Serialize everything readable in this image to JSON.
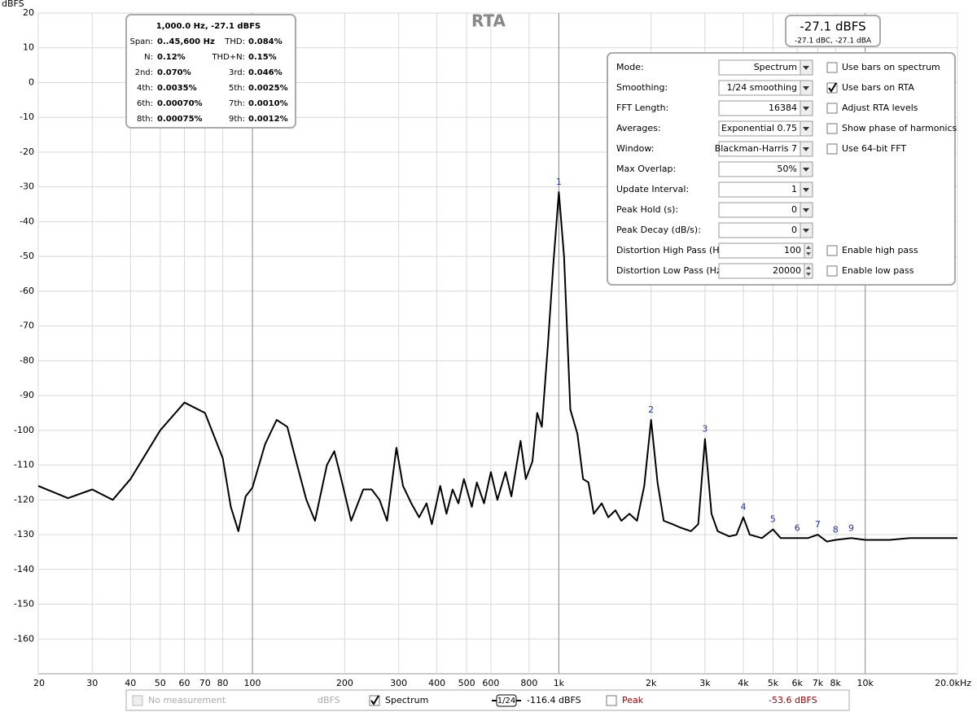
{
  "chart_data": {
    "type": "line",
    "title": "RTA",
    "y_label": "dBFS",
    "xscale": "log",
    "xlim": [
      20,
      20000
    ],
    "ylim": [
      -170,
      20
    ],
    "xticks": [
      20,
      30,
      40,
      50,
      60,
      70,
      80,
      100,
      200,
      300,
      400,
      500,
      600,
      800,
      {
        "value": 1000,
        "label": "1k"
      },
      {
        "value": 2000,
        "label": "2k"
      },
      {
        "value": 3000,
        "label": "3k"
      },
      {
        "value": 4000,
        "label": "4k"
      },
      {
        "value": 5000,
        "label": "5k"
      },
      {
        "value": 6000,
        "label": "6k"
      },
      {
        "value": 7000,
        "label": "7k"
      },
      {
        "value": 8000,
        "label": "8k"
      },
      {
        "value": 10000,
        "label": "10k"
      },
      {
        "value": 20000,
        "label": "20.0kHz"
      }
    ],
    "yticks": [
      -160,
      -150,
      -140,
      -130,
      -120,
      -110,
      -100,
      -90,
      -80,
      -70,
      -60,
      -50,
      -40,
      -30,
      -20,
      -10,
      0,
      10,
      20
    ],
    "grid": true,
    "series": [
      {
        "name": "Spectrum",
        "color": "#000000",
        "x": [
          20,
          25,
          30,
          35,
          40,
          50,
          60,
          70,
          80,
          85,
          90,
          95,
          100,
          110,
          120,
          130,
          140,
          150,
          160,
          175,
          185,
          195,
          210,
          230,
          245,
          260,
          275,
          295,
          310,
          330,
          350,
          370,
          385,
          410,
          430,
          450,
          470,
          490,
          520,
          540,
          570,
          600,
          630,
          670,
          700,
          750,
          780,
          820,
          850,
          880,
          920,
          960,
          1000,
          1040,
          1090,
          1150,
          1200,
          1250,
          1300,
          1380,
          1450,
          1530,
          1600,
          1700,
          1800,
          1900,
          2000,
          2100,
          2200,
          2350,
          2500,
          2700,
          2850,
          3000,
          3150,
          3300,
          3600,
          3800,
          4000,
          4200,
          4600,
          5000,
          5300,
          6000,
          6500,
          7000,
          7500,
          8000,
          9000,
          10000,
          12000,
          14000,
          16000,
          18000,
          20000
        ],
        "values": [
          -116,
          -119.5,
          -117,
          -120,
          -114,
          -100,
          -92,
          -95,
          -108,
          -122,
          -129,
          -119,
          -116.5,
          -104,
          -97,
          -99,
          -110,
          -120,
          -126,
          -110,
          -106,
          -114,
          -126,
          -117,
          -117,
          -120,
          -126,
          -105,
          -116,
          -121,
          -125,
          -121,
          -127,
          -116,
          -124,
          -117,
          -121,
          -114,
          -122,
          -115,
          -121,
          -112,
          -120,
          -112,
          -119,
          -103,
          -114,
          -109,
          -95,
          -99,
          -76,
          -52,
          -31.5,
          -50,
          -94,
          -101,
          -114,
          -115,
          -124,
          -121,
          -125,
          -123,
          -126,
          -124,
          -126,
          -116,
          -97,
          -115,
          -126,
          -127,
          -128,
          -129,
          -127,
          -102.5,
          -124,
          -129,
          -130.5,
          -130,
          -125,
          -130,
          -131,
          -128.5,
          -131,
          -131,
          -131,
          -130,
          -132,
          -131.5,
          -131,
          -131.5,
          -131.5,
          -131,
          -131,
          -131,
          -131
        ]
      }
    ],
    "harmonics": [
      {
        "label": "1",
        "x": 1000,
        "y": -31.5
      },
      {
        "label": "2",
        "x": 2000,
        "y": -97
      },
      {
        "label": "3",
        "x": 3000,
        "y": -102.5
      },
      {
        "label": "4",
        "x": 4000,
        "y": -125
      },
      {
        "label": "5",
        "x": 5000,
        "y": -128.5
      },
      {
        "label": "6",
        "x": 6000,
        "y": -131
      },
      {
        "label": "7",
        "x": 7000,
        "y": -130
      },
      {
        "label": "8",
        "x": 8000,
        "y": -131.5
      },
      {
        "label": "9",
        "x": 9000,
        "y": -131
      }
    ]
  },
  "readout": {
    "main": "-27.1 dBFS",
    "sub": "-27.1 dBC, -27.1 dBA"
  },
  "info_box": {
    "header": "1,000.0 Hz, -27.1 dBFS",
    "rows": [
      [
        "Span:",
        "0..45,600 Hz",
        "THD:",
        "0.084%"
      ],
      [
        "N:",
        "0.12%",
        "THD+N:",
        "0.15%"
      ],
      [
        "2nd:",
        "0.070%",
        "3rd:",
        "0.046%"
      ],
      [
        "4th:",
        "0.0035%",
        "5th:",
        "0.0025%"
      ],
      [
        "6th:",
        "0.00070%",
        "7th:",
        "0.0010%"
      ],
      [
        "8th:",
        "0.00075%",
        "9th:",
        "0.0012%"
      ]
    ]
  },
  "controls": [
    {
      "label": "Mode:",
      "value": "Spectrum",
      "kind": "select",
      "option": {
        "label": "Use bars on spectrum",
        "checked": false
      }
    },
    {
      "label": "Smoothing:",
      "value": "1/24 smoothing",
      "kind": "select",
      "option": {
        "label": "Use bars on RTA",
        "checked": true
      }
    },
    {
      "label": "FFT Length:",
      "value": "16384",
      "kind": "select",
      "option": {
        "label": "Adjust RTA levels",
        "checked": false
      }
    },
    {
      "label": "Averages:",
      "value": "Exponential 0.75",
      "kind": "select",
      "option": {
        "label": "Show phase of harmonics",
        "checked": false
      }
    },
    {
      "label": "Window:",
      "value": "Blackman-Harris 7",
      "kind": "select",
      "option": {
        "label": "Use 64-bit FFT",
        "checked": false
      }
    },
    {
      "label": "Max Overlap:",
      "value": "50%",
      "kind": "select"
    },
    {
      "label": "Update Interval:",
      "value": "1",
      "kind": "select"
    },
    {
      "label": "Peak Hold (s):",
      "value": "0",
      "kind": "select"
    },
    {
      "label": "Peak Decay (dB/s):",
      "value": "0",
      "kind": "select"
    },
    {
      "label": "Distortion High Pass (Hz):",
      "value": "100",
      "kind": "spin",
      "option": {
        "label": "Enable high pass",
        "checked": false
      }
    },
    {
      "label": "Distortion Low Pass (Hz):",
      "value": "20000",
      "kind": "spin",
      "option": {
        "label": "Enable low pass",
        "checked": false
      }
    }
  ],
  "legend_bar": {
    "no_measurement": "No measurement",
    "unit": "dBFS",
    "spectrum": "Spectrum",
    "spectrum_checked": true,
    "smoothing": "1/24",
    "spectrum_level": "-116.4 dBFS",
    "peak": "Peak",
    "peak_checked": false,
    "peak_level": "-53.6 dBFS"
  }
}
